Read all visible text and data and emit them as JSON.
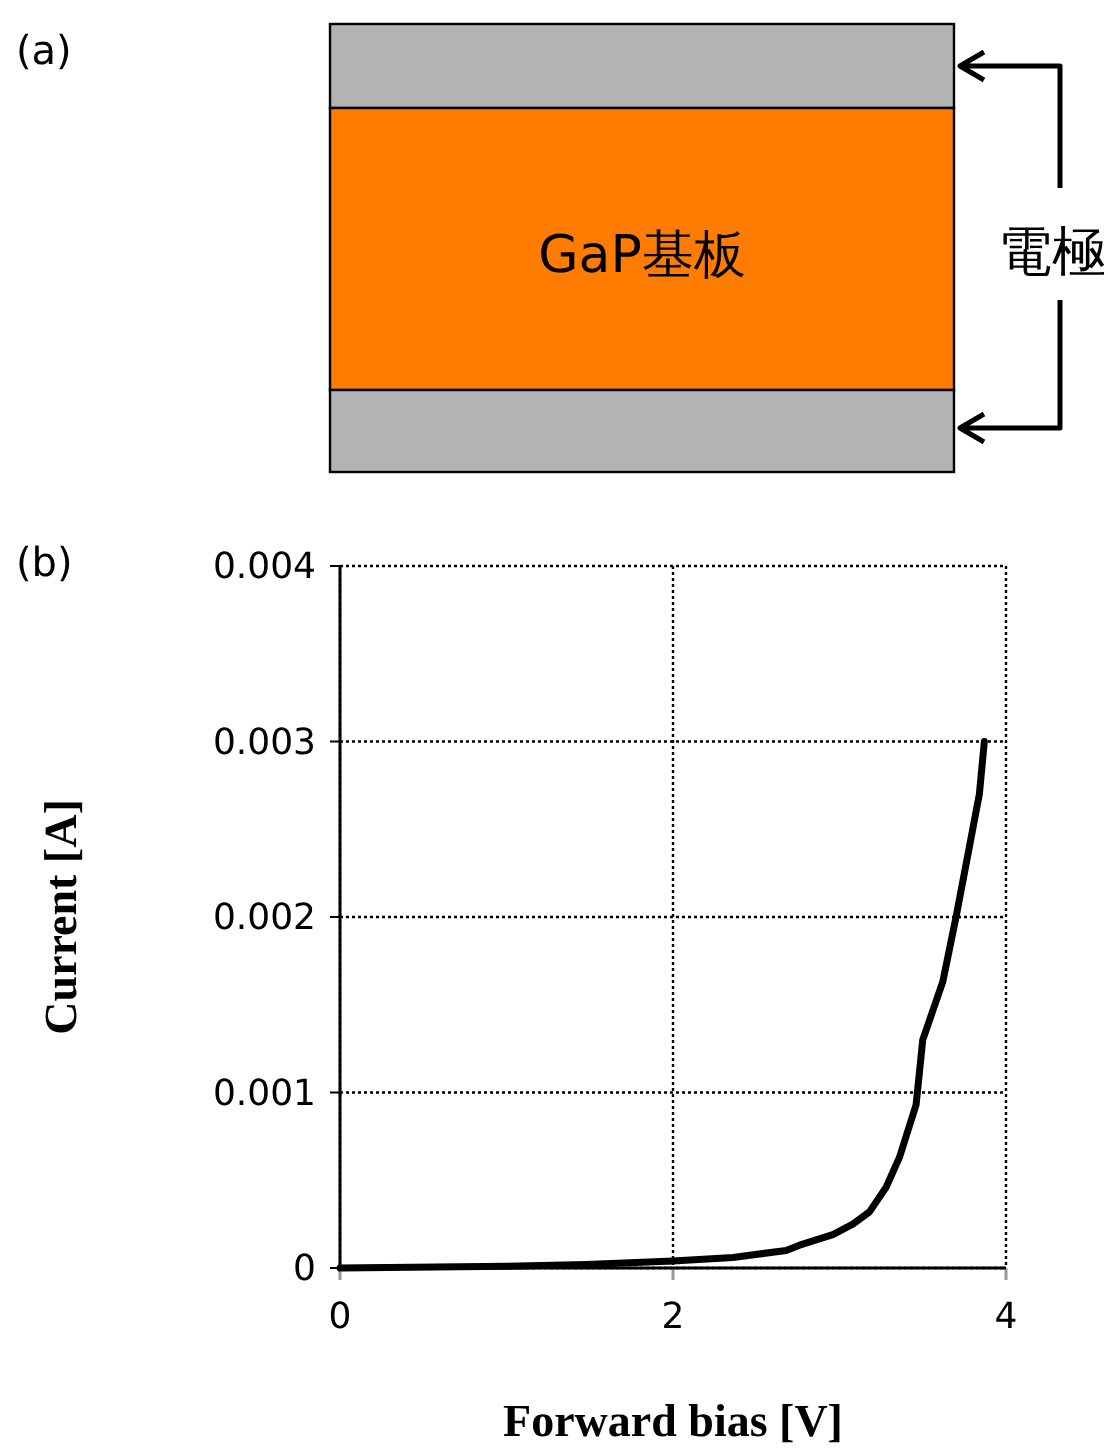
{
  "chart_data": {
    "type": "line",
    "xlabel": "Forward bias [V]",
    "ylabel": "Current [A]",
    "color": "#000000",
    "line_style": "solid",
    "grid": true,
    "xlim": [
      0,
      4
    ],
    "ylim": [
      0,
      0.004
    ],
    "xticks": [
      0,
      2,
      4
    ],
    "yticks": [
      0,
      0.001,
      0.002,
      0.003,
      0.004
    ],
    "x": [
      0,
      1.0,
      1.48,
      2.0,
      2.36,
      2.68,
      2.76,
      2.96,
      3.08,
      3.18,
      3.28,
      3.36,
      3.46,
      3.5,
      3.62,
      3.7,
      3.78,
      3.84,
      3.87
    ],
    "values": [
      0,
      1e-05,
      2e-05,
      4e-05,
      6e-05,
      0.0001,
      0.00013,
      0.00019,
      0.00025,
      0.00032,
      0.00046,
      0.00063,
      0.00093,
      0.0013,
      0.00163,
      0.002,
      0.0024,
      0.0027,
      0.003
    ],
    "annotations": [
      "(a)",
      "GaP基板",
      "電極",
      "(b)"
    ]
  }
}
